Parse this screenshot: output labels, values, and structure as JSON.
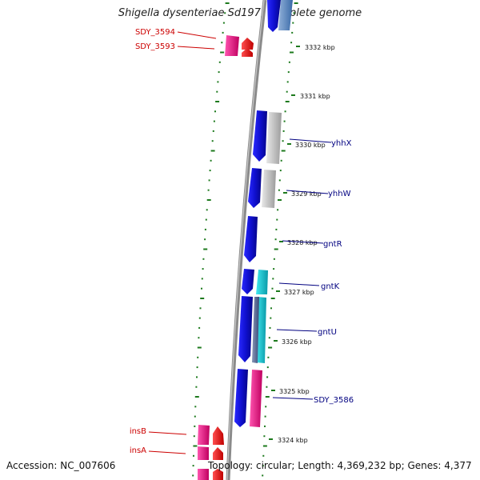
{
  "title": "Shigella dysenteriae Sd197, complete genome",
  "accession_text": "Accession: NC_007606",
  "topology_text": "Topology: circular; Length: 4,369,232 bp; Genes: 4,377",
  "colors": {
    "backbone": "#8a8a8a",
    "tick": "#1d7a1d",
    "forward_cds": "#1010e0",
    "reverse_cds": "#e0107a",
    "rna": "#b8b8b8",
    "highlight": "#20c8d8",
    "mobile_element": "#ee1111",
    "blue_label": "#000080",
    "red_label": "#cc0000"
  },
  "kbp_labels": [
    "3332 kbp",
    "3331 kbp",
    "3330 kbp",
    "3329 kbp",
    "3328 kbp",
    "3327 kbp",
    "3326 kbp",
    "3325 kbp",
    "3324 kbp"
  ],
  "gene_labels_blue": [
    "yhhX",
    "yhhW",
    "gntR",
    "gntK",
    "gntU",
    "SDY_3586"
  ],
  "gene_labels_red": [
    "SDY_3594",
    "SDY_3593",
    "insB",
    "insA"
  ]
}
